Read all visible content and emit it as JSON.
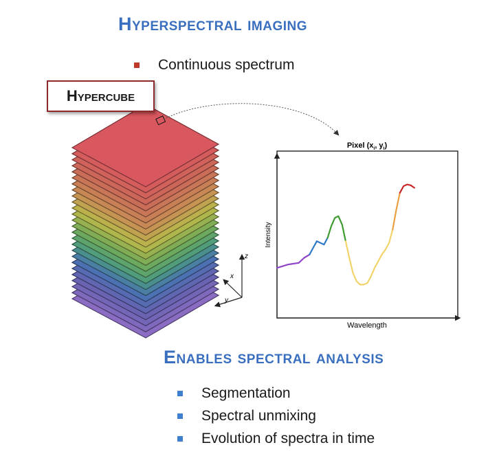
{
  "header": {
    "title": "Hyperspectral imaging"
  },
  "top_bullets": [
    {
      "text": "Continuous spectrum"
    }
  ],
  "hypercube": {
    "label": "Hypercube",
    "axis_labels": {
      "z": "z",
      "x": "x",
      "y": "y"
    }
  },
  "spectrum_plot": {
    "title": "Pixel (xi, yi)",
    "title_main": "Pixel (x",
    "title_sub_i": "i",
    "title_mid": ", y",
    "title_end": ")",
    "xlabel": "Wavelength",
    "ylabel": "Intensity"
  },
  "chart_data": {
    "type": "line",
    "title": "Pixel (xi, yi)",
    "xlabel": "Wavelength",
    "ylabel": "Intensity",
    "xlim": [
      0,
      100
    ],
    "ylim": [
      0,
      100
    ],
    "x": [
      0,
      3,
      6,
      9,
      12,
      15,
      18,
      20,
      22,
      24,
      26,
      28,
      30,
      32,
      34,
      36,
      38,
      40,
      42,
      44,
      46,
      48,
      50,
      52,
      54,
      56,
      58,
      60,
      62,
      64,
      66,
      68,
      70,
      72,
      74,
      76,
      78,
      80,
      82,
      84,
      86,
      88,
      90,
      92,
      94,
      96
    ],
    "y": [
      30,
      31,
      32,
      32.5,
      33,
      36,
      38,
      42,
      46,
      45,
      44,
      48,
      55,
      60,
      61,
      56,
      46,
      36,
      27,
      22,
      20,
      20,
      21,
      25,
      30,
      34,
      38,
      41,
      45,
      53,
      65,
      75,
      79,
      80,
      79.5,
      78,
      78,
      78,
      78,
      78,
      78,
      78,
      78,
      78,
      78,
      78
    ],
    "segments": [
      {
        "name": "purple",
        "color": "#8e44c9",
        "from": 0,
        "to": 6
      },
      {
        "name": "blue",
        "color": "#2f79c6",
        "from": 6,
        "to": 11
      },
      {
        "name": "green",
        "color": "#3f9b32",
        "from": 11,
        "to": 16
      },
      {
        "name": "yellow",
        "color": "#f1d36a",
        "from": 16,
        "to": 29
      },
      {
        "name": "orange",
        "color": "#eaa040",
        "from": 29,
        "to": 31
      },
      {
        "name": "red",
        "color": "#c62828",
        "from": 31,
        "to": 35
      }
    ]
  },
  "bottom_section": {
    "title": "Enables spectral analysis"
  },
  "bottom_bullets": [
    {
      "text": "Segmentation"
    },
    {
      "text": "Spectral unmixing"
    },
    {
      "text": "Evolution of spectra in time"
    }
  ],
  "colors": {
    "title": "#3a6fbf",
    "red_bullet": "#c0392b",
    "blue_bullet": "#3f7fd0",
    "hypercube_border": "#8a2a2a"
  }
}
